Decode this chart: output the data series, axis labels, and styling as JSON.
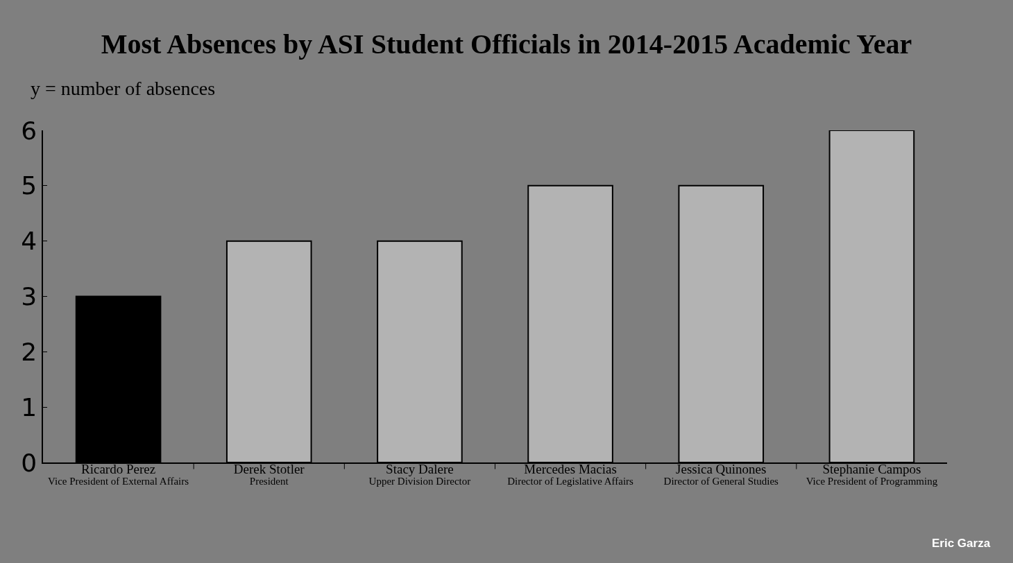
{
  "chart_data": {
    "type": "bar",
    "title": "Most Absences by ASI Student Officials in 2014-2015 Academic Year",
    "ylabel": "y = number of absences",
    "categories": [
      "Ricardo Perez\nVice President of External Affairs",
      "Derek Stotler\nPresident",
      "Stacy Dalere\nUpper Division Director",
      "Mercedes Macias\nDirector of Legislative Affairs",
      "Jessica Quinones\nDirector of General Studies",
      "Stephanie Campos\nVice President of Programming"
    ],
    "values": [
      3,
      4,
      4,
      5,
      5,
      6
    ],
    "colors": [
      "#000000",
      "#b3b3b3",
      "#b3b3b3",
      "#b3b3b3",
      "#b3b3b3",
      "#b3b3b3"
    ],
    "ylim": [
      0,
      6
    ],
    "yticks": [
      0,
      1,
      2,
      3,
      4,
      5,
      6
    ],
    "grid": false,
    "annotations": [
      "Eric Garza"
    ]
  }
}
